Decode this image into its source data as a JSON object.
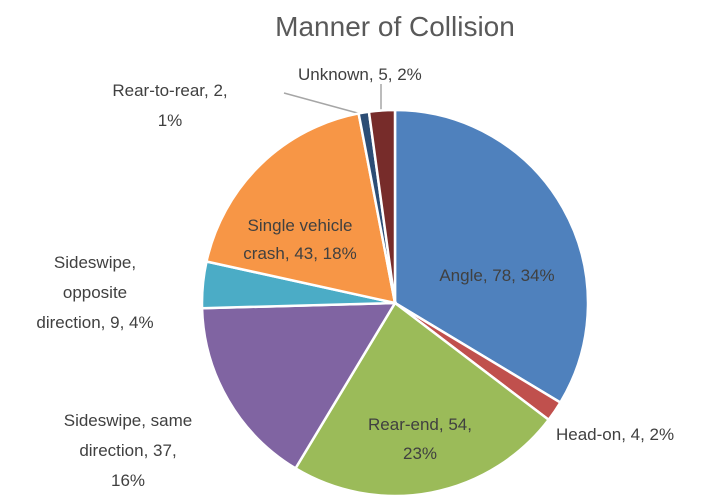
{
  "chart_data": {
    "type": "pie",
    "title": "Manner of Collision",
    "values": [
      78,
      4,
      54,
      37,
      9,
      43,
      2,
      5
    ],
    "value_labels": [
      [
        "Angle, 78, 34%"
      ],
      [
        "Head-on, 4, 2%"
      ],
      [
        "Rear-end, 54,",
        "23%"
      ],
      [
        "Sideswipe, same",
        "direction, 37,",
        "16%"
      ],
      [
        "Sideswipe,",
        "opposite",
        "direction, 9, 4%"
      ],
      [
        "Single vehicle",
        "crash, 43, 18%"
      ],
      [
        "Rear-to-rear, 2,",
        "1%"
      ],
      [
        "Unknown, 5, 2%"
      ]
    ],
    "colors": [
      "#4f81bd",
      "#c0504d",
      "#9bbb59",
      "#8064a2",
      "#4bacc6",
      "#f79646",
      "#2c4d75",
      "#772c2a"
    ]
  }
}
